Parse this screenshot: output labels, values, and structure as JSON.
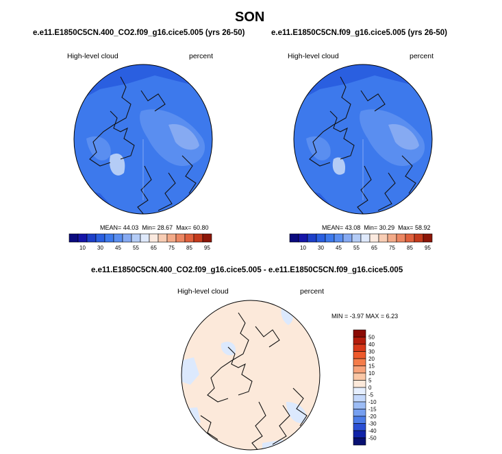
{
  "page": {
    "title": "SON"
  },
  "chart_data": [
    {
      "type": "heatmap",
      "title": "e.e11.E1850C5CN.400_CO2.f09_g16.cice5.005 (yrs 26-50)",
      "left_label": "High-level cloud",
      "right_label": "percent",
      "stats": {
        "mean_label": "MEAN=",
        "mean": "44.03",
        "min_label": "Min=",
        "min": "28.67",
        "max_label": "Max=",
        "max": "60.80"
      },
      "colorbar": {
        "levels": [
          5,
          10,
          20,
          30,
          40,
          45,
          50,
          55,
          60,
          65,
          70,
          75,
          80,
          85,
          90,
          95
        ],
        "tick_labels": [
          "10",
          "30",
          "45",
          "55",
          "65",
          "75",
          "85",
          "95"
        ],
        "colors": [
          "#0a0a7e",
          "#1515a8",
          "#1d3fc8",
          "#2a5fe0",
          "#3d79ec",
          "#5a8ef0",
          "#86aaf2",
          "#b4ccf6",
          "#dfe9fb",
          "#fbeae0",
          "#f8cdb4",
          "#f3aa88",
          "#ec8662",
          "#e0603c",
          "#c43a1c",
          "#8c1608"
        ]
      }
    },
    {
      "type": "heatmap",
      "title": "e.e11.E1850C5CN.f09_g16.cice5.005 (yrs 26-50)",
      "left_label": "High-level cloud",
      "right_label": "percent",
      "stats": {
        "mean_label": "MEAN=",
        "mean": "43.08",
        "min_label": "Min=",
        "min": "30.29",
        "max_label": "Max=",
        "max": "58.92"
      },
      "colorbar": {
        "levels": [
          5,
          10,
          20,
          30,
          40,
          45,
          50,
          55,
          60,
          65,
          70,
          75,
          80,
          85,
          90,
          95
        ],
        "tick_labels": [
          "10",
          "30",
          "45",
          "55",
          "65",
          "75",
          "85",
          "95"
        ],
        "colors": [
          "#0a0a7e",
          "#1515a8",
          "#1d3fc8",
          "#2a5fe0",
          "#3d79ec",
          "#5a8ef0",
          "#86aaf2",
          "#b4ccf6",
          "#dfe9fb",
          "#fbeae0",
          "#f8cdb4",
          "#f3aa88",
          "#ec8662",
          "#e0603c",
          "#c43a1c",
          "#8c1608"
        ]
      }
    },
    {
      "type": "heatmap",
      "title": "e.e11.E1850C5CN.400_CO2.f09_g16.cice5.005 - e.e11.E1850C5CN.f09_g16.cice5.005",
      "left_label": "High-level cloud",
      "right_label": "percent",
      "stats": {
        "min_label": "MIN =",
        "min": "-3.97",
        "max_label": "MAX =",
        "max": "6.23"
      },
      "colorbar": {
        "levels": [
          50,
          40,
          30,
          20,
          15,
          10,
          5,
          0,
          -5,
          -10,
          -15,
          -20,
          -30,
          -40,
          -50
        ],
        "tick_labels": [
          "50",
          "40",
          "30",
          "20",
          "15",
          "10",
          "5",
          "0",
          "-5",
          "-10",
          "-15",
          "-20",
          "-30",
          "-40",
          "-50"
        ],
        "colors": [
          "#8b0a04",
          "#b41c0c",
          "#d8391a",
          "#ee5a2c",
          "#f47c4a",
          "#f7a27a",
          "#fac7a6",
          "#fce9da",
          "#e6efff",
          "#c4d8fb",
          "#9cbcf5",
          "#769ff0",
          "#4c7ce8",
          "#2a4fd4",
          "#1023a8",
          "#081071"
        ]
      }
    }
  ]
}
